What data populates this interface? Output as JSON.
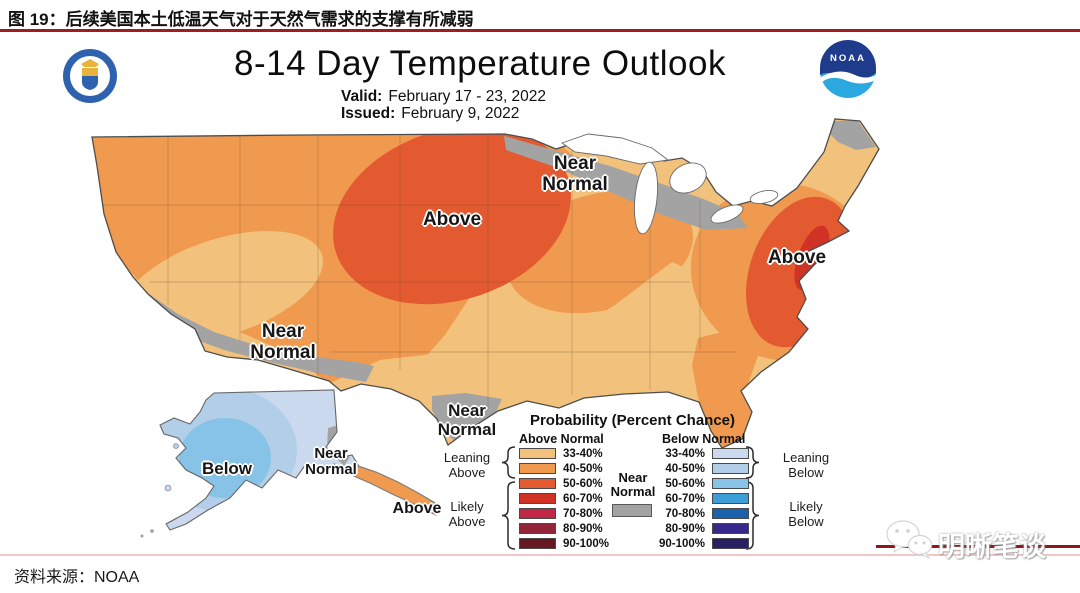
{
  "figure": {
    "title": "图 19：后续美国本土低温天气对于天然气需求的支撑有所减弱",
    "source": "资料来源：NOAA"
  },
  "watermark": {
    "text": "明晰笔谈",
    "icon": "wechat-icon",
    "line_color": "#8C181C"
  },
  "map": {
    "title": "8-14 Day Temperature Outlook",
    "valid_label": "Valid:",
    "valid_value": "February 17 - 23, 2022",
    "issued_label": "Issued:",
    "issued_value": "February 9, 2022",
    "noaa_text": "NOAA",
    "labels": {
      "nn_north": "Near\nNormal",
      "above_central": "Above",
      "above_east": "Above",
      "nn_west": "Near\nNormal",
      "nn_tx": "Near\nNormal",
      "below_ak": "Below",
      "nn_ak": "Near\nNormal",
      "above_ak": "Above"
    }
  },
  "legend": {
    "title": "Probability (Percent Chance)",
    "above_header": "Above Normal",
    "below_header": "Below Normal",
    "near_normal": "Near\nNormal",
    "groups": {
      "leaning_above": "Leaning\nAbove",
      "likely_above": "Likely\nAbove",
      "leaning_below": "Leaning\nBelow",
      "likely_below": "Likely\nBelow"
    },
    "rows": [
      {
        "pct": "33-40%",
        "above": "#F2C27D",
        "below": "#CBD9EE"
      },
      {
        "pct": "40-50%",
        "above": "#F09A4F",
        "below": "#B2CEE9"
      },
      {
        "pct": "50-60%",
        "above": "#E35A31",
        "below": "#86C3E6"
      },
      {
        "pct": "60-70%",
        "above": "#D03226",
        "below": "#3D9ED7"
      },
      {
        "pct": "70-80%",
        "above": "#C22845",
        "below": "#1A63AC"
      },
      {
        "pct": "80-90%",
        "above": "#93253B",
        "below": "#37298C"
      },
      {
        "pct": "90-100%",
        "above": "#671722",
        "below": "#272064"
      }
    ]
  },
  "colors": {
    "above_33": "#F2C27D",
    "above_40": "#F09A4F",
    "above_50": "#E35A31",
    "above_60": "#D03226",
    "below_33": "#CBD9EE",
    "below_40": "#B2CEE9",
    "below_50": "#86C3E6",
    "near_normal": "#A3A3A3"
  }
}
